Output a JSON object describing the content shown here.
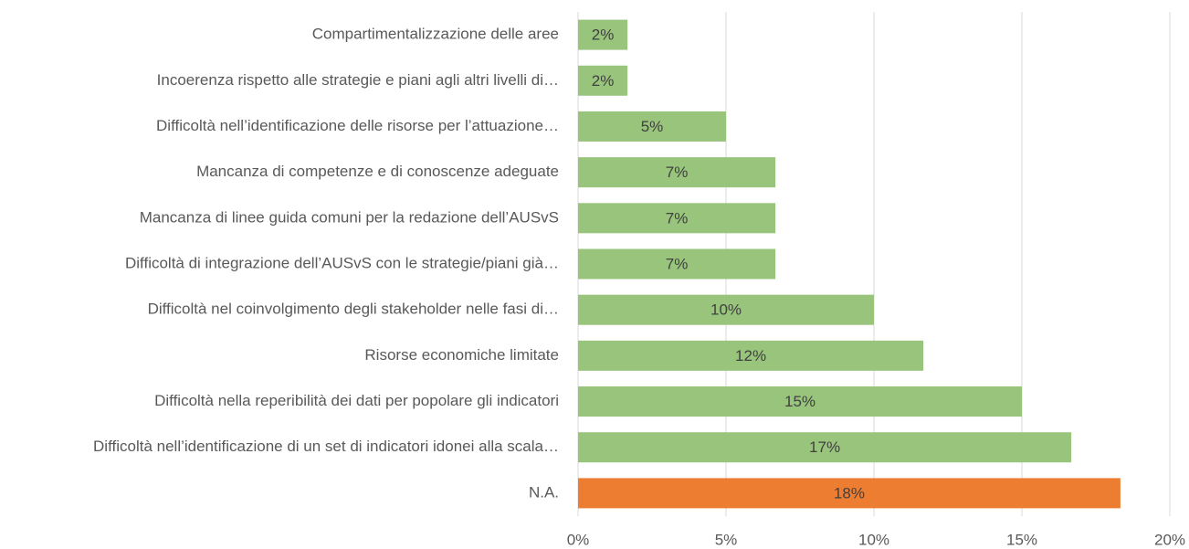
{
  "chart_data": {
    "type": "hbar",
    "categories": [
      "Compartimentalizzazione delle aree",
      "Incoerenza rispetto alle strategie e piani agli altri livelli di…",
      "Difficoltà nell’identificazione delle risorse per l’attuazione…",
      "Mancanza di competenze e di conoscenze adeguate",
      "Mancanza di linee guida comuni per la redazione dell’AUSvS",
      "Difficoltà di integrazione dell’AUSvS con le strategie/piani già…",
      "Difficoltà nel coinvolgimento degli stakeholder nelle fasi di…",
      "Risorse economiche limitate",
      "Difficoltà nella reperibilità dei dati per popolare gli indicatori",
      "Difficoltà nell’identificazione di un set di indicatori idonei alla scala…",
      "N.A."
    ],
    "values": [
      1.67,
      1.67,
      5.0,
      6.67,
      6.67,
      6.67,
      10.0,
      11.67,
      15.0,
      16.67,
      18.33
    ],
    "value_labels": [
      "2%",
      "2%",
      "5%",
      "7%",
      "7%",
      "7%",
      "10%",
      "12%",
      "15%",
      "17%",
      "18%"
    ],
    "colors": [
      "#98c47c",
      "#98c47c",
      "#98c47c",
      "#98c47c",
      "#98c47c",
      "#98c47c",
      "#98c47c",
      "#98c47c",
      "#98c47c",
      "#98c47c",
      "#ed7d31"
    ],
    "xlim": [
      0,
      20
    ],
    "xticks": [
      {
        "value": 0,
        "label": "0%"
      },
      {
        "value": 5,
        "label": "5%"
      },
      {
        "value": 10,
        "label": "10%"
      },
      {
        "value": 15,
        "label": "15%"
      },
      {
        "value": 20,
        "label": "20%"
      }
    ],
    "grid": true
  }
}
